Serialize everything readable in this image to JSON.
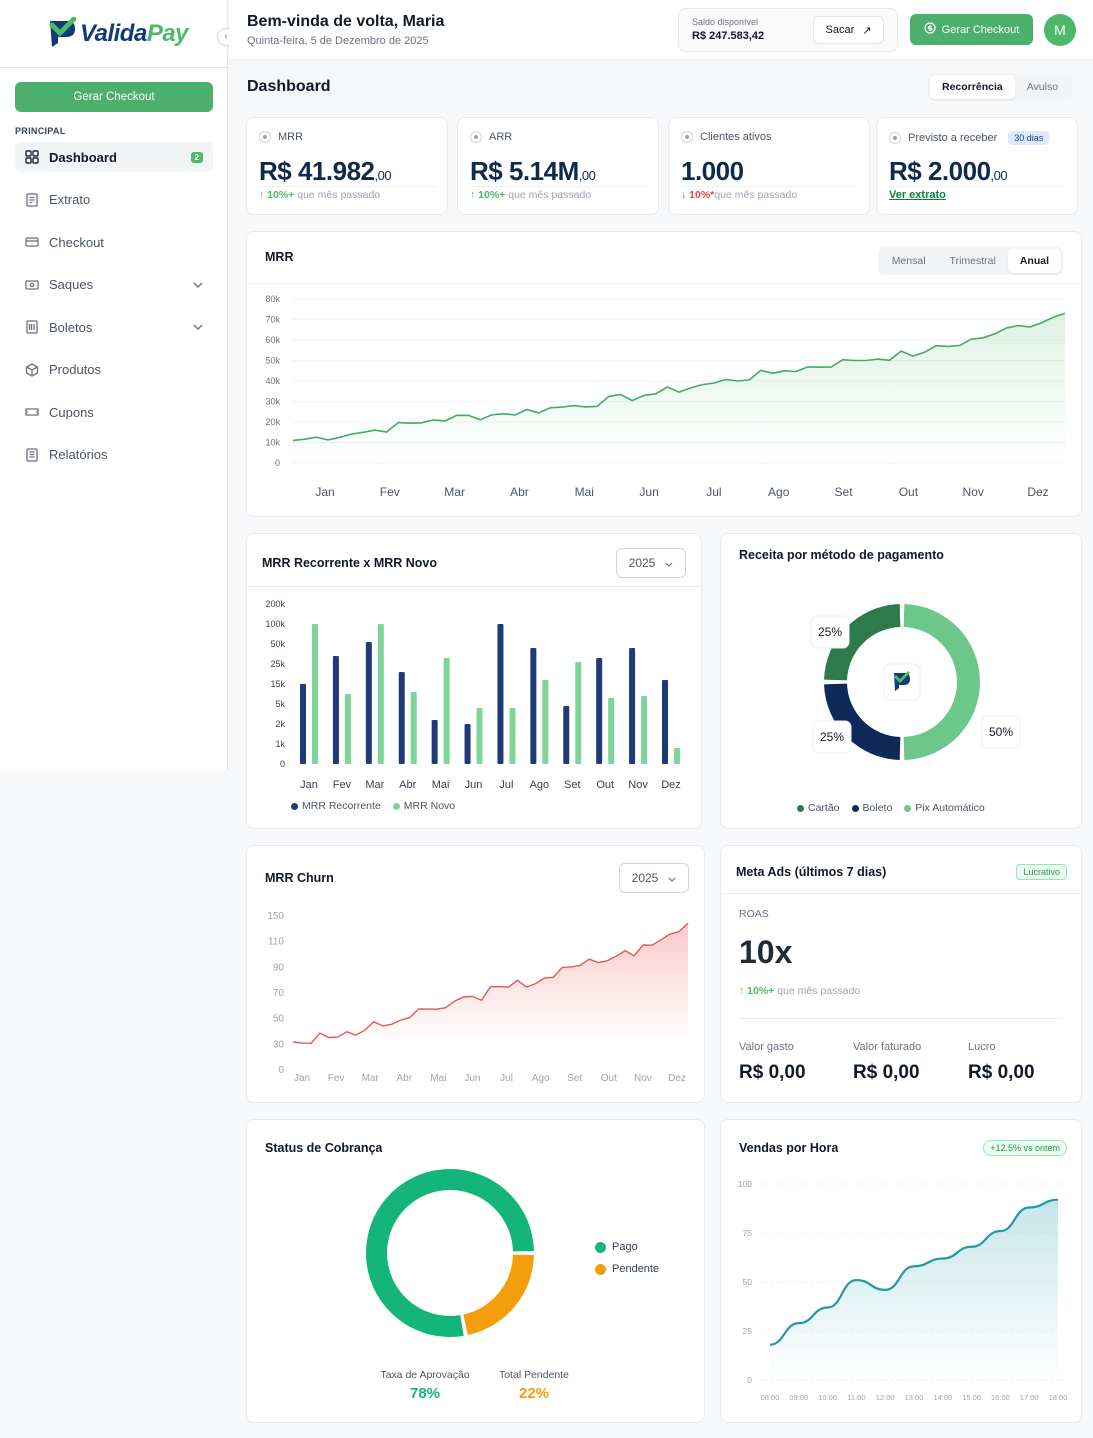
{
  "brand": {
    "name_a": "Valida",
    "name_b": "Pay"
  },
  "sidebar": {
    "cta": "Gerar Checkout",
    "section": "PRINCIPAL",
    "items": [
      {
        "label": "Dashboard",
        "icon": "grid-icon",
        "badge": "2"
      },
      {
        "label": "Extrato",
        "icon": "receipt-icon"
      },
      {
        "label": "Checkout",
        "icon": "card-icon"
      },
      {
        "label": "Saques",
        "icon": "wallet-icon"
      },
      {
        "label": "Boletos",
        "icon": "boleto-icon"
      },
      {
        "label": "Produtos",
        "icon": "box-icon"
      },
      {
        "label": "Cupons",
        "icon": "ticket-icon"
      },
      {
        "label": "Relatórios",
        "icon": "report-icon"
      }
    ]
  },
  "header": {
    "greeting": "Bem-vinda de volta, Maria",
    "date": "Quinta-feira, 5 de Dezembro de 2025",
    "balance_label": "Saldo disponível",
    "balance_value": "R$ 247.583,42",
    "withdraw": "Sacar",
    "cta": "Gerar Checkout",
    "avatar": "M"
  },
  "page": {
    "title": "Dashboard",
    "tabs": [
      "Recorrência",
      "Avulso"
    ]
  },
  "kpis": [
    {
      "label": "MRR",
      "value": "R$ 41.982",
      "cents": ",00",
      "trend_pct": "10%+",
      "trend_text": "que mês passado"
    },
    {
      "label": "ARR",
      "value": "R$ 5.14M",
      "cents": ",00",
      "trend_pct": "10%+",
      "trend_text": "que mês passado"
    },
    {
      "label": "Clientes ativos",
      "value": "1.000",
      "trend_pct": "10%",
      "trend_star": "*",
      "trend_text": "que mês passado"
    },
    {
      "label": "Previsto a receber",
      "tag": "30 dias",
      "value": "R$ 2.000",
      "cents": ",00",
      "link": "Ver extrato"
    }
  ],
  "mrr_card": {
    "title": "MRR",
    "tabs": [
      "Mensal",
      "Trimestral",
      "Anual"
    ]
  },
  "mrr_bars_card": {
    "title": "MRR Recorrente x MRR Novo",
    "year": "2025"
  },
  "payment_card": {
    "title": "Receita por método de pagamento"
  },
  "churn_card": {
    "title": "MRR Churn",
    "year": "2025"
  },
  "ads_card": {
    "title": "Meta Ads (últimos 7 dias)",
    "badge": "Lucrativo",
    "roas_label": "ROAS",
    "roas_value": "10x",
    "trend_pct": "10%+",
    "trend_text": "que mês passado",
    "spent_label": "Valor gasto",
    "spent_value": "R$ 0,00",
    "billed_label": "Valor faturado",
    "billed_value": "R$ 0,00",
    "profit_label": "Lucro",
    "profit_value": "R$ 0,00"
  },
  "status_card": {
    "title": "Status de Cobrança",
    "legend": [
      "Pago",
      "Pendente"
    ],
    "approval_label": "Taxa de Aprovação",
    "approval_value": "78%",
    "pending_label": "Total Pendente",
    "pending_value": "22%"
  },
  "hourly_card": {
    "title": "Vendas por Hora",
    "badge": "+12.5% vs ontem"
  },
  "colors": {
    "green": "#4db86a",
    "navy": "#1f3a78",
    "lightgreen": "#7fd49a",
    "red": "#ef4444",
    "orange": "#f59e0b",
    "teal": "#1e9aa6"
  },
  "chart_data": [
    {
      "type": "line",
      "title": "MRR",
      "x": [
        "Jan",
        "Fev",
        "Mar",
        "Abr",
        "Mai",
        "Jun",
        "Jul",
        "Ago",
        "Set",
        "Out",
        "Nov",
        "Dez"
      ],
      "y_ticks": [
        "80k",
        "70k",
        "60k",
        "50k",
        "40k",
        "30k",
        "20k",
        "10k",
        "0"
      ],
      "ylim": [
        0,
        80000
      ],
      "series": [
        {
          "values": [
            11000,
            15000,
            21000,
            24000,
            28000,
            33000,
            39000,
            45000,
            50000,
            54000,
            63000,
            73000
          ]
        }
      ]
    },
    {
      "type": "bar",
      "title": "MRR Recorrente x MRR Novo",
      "categories": [
        "Jan",
        "Fev",
        "Mar",
        "Abr",
        "Mai",
        "Jun",
        "Jul",
        "Ago",
        "Set",
        "Out",
        "Nov",
        "Dez"
      ],
      "y_ticks": [
        "200k",
        "100k",
        "50k",
        "25k",
        "15k",
        "5k",
        "2k",
        "1k",
        "0"
      ],
      "series": [
        {
          "name": "MRR Recorrente",
          "values": [
            4,
            5.4,
            6.1,
            4.6,
            2.2,
            2,
            7,
            5.8,
            2.9,
            5.3,
            5.8,
            4.2
          ]
        },
        {
          "name": "MRR Novo",
          "values": [
            7,
            3.5,
            7,
            3.6,
            5.3,
            2.8,
            2.8,
            4.2,
            5.1,
            3.3,
            3.4,
            0.8
          ]
        }
      ]
    },
    {
      "type": "pie",
      "title": "Receita por método de pagamento",
      "slices": [
        {
          "name": "Pix Automático",
          "value": 50,
          "label": "50%"
        },
        {
          "name": "Boleto",
          "value": 25,
          "label": "25%"
        },
        {
          "name": "Cartão",
          "value": 25,
          "label": "25%"
        }
      ]
    },
    {
      "type": "area",
      "title": "MRR Churn",
      "x": [
        "Jan",
        "Fev",
        "Mar",
        "Abr",
        "Mai",
        "Jun",
        "Jul",
        "Ago",
        "Set",
        "Out",
        "Nov",
        "Dez"
      ],
      "y_ticks": [
        "150",
        "110",
        "90",
        "70",
        "50",
        "30",
        "0"
      ],
      "series": [
        {
          "values": [
            12,
            17,
            25,
            36,
            48,
            62,
            72,
            82,
            96,
            106,
            118,
            142
          ]
        }
      ]
    },
    {
      "type": "pie",
      "title": "Status de Cobrança",
      "slices": [
        {
          "name": "Pago",
          "value": 78
        },
        {
          "name": "Pendente",
          "value": 22
        }
      ]
    },
    {
      "type": "area",
      "title": "Vendas por Hora",
      "x": [
        "08:00",
        "09:00",
        "10:00",
        "11:00",
        "12:00",
        "13:00",
        "14:00",
        "15:00",
        "16:00",
        "17:00",
        "18:00"
      ],
      "y_ticks": [
        "100",
        "75",
        "50",
        "25",
        "0"
      ],
      "ylim": [
        0,
        100
      ],
      "series": [
        {
          "values": [
            18,
            29,
            37,
            51,
            46,
            58,
            62,
            68,
            76,
            88,
            92
          ]
        }
      ]
    }
  ]
}
